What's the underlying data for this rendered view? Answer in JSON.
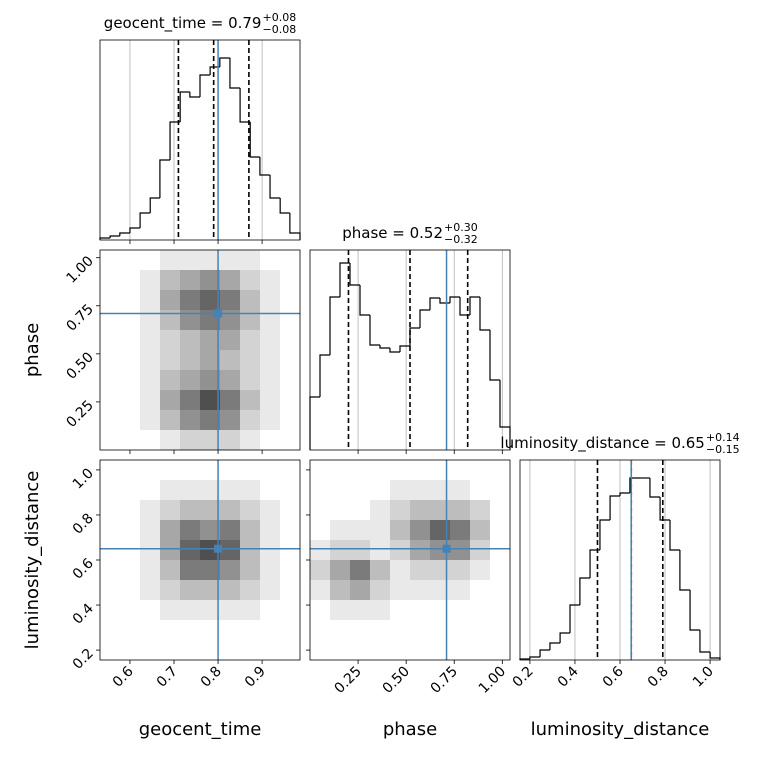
{
  "chart_data": [
    {
      "type": "histogram",
      "title": "geocent_time = 0.79",
      "title_plus": "+0.08",
      "title_minus": "−0.08",
      "bins": [
        0.532,
        0.555,
        0.577,
        0.6,
        0.623,
        0.646,
        0.668,
        0.691,
        0.714,
        0.736,
        0.759,
        0.782,
        0.804,
        0.827,
        0.85,
        0.873,
        0.895,
        0.918,
        0.941,
        0.963,
        0.986
      ],
      "counts": [
        2,
        4,
        7,
        12,
        27,
        42,
        80,
        118,
        148,
        143,
        165,
        173,
        182,
        152,
        118,
        83,
        65,
        42,
        27,
        7
      ],
      "xlim": [
        0.532,
        0.986
      ],
      "ylim": [
        0,
        200
      ],
      "quantiles": [
        0.71,
        0.79,
        0.87
      ],
      "truth": 0.8,
      "truth_color": "#4682b4",
      "grid": true
    },
    {
      "type": "density",
      "xlim": [
        0.532,
        0.986
      ],
      "ylim": [
        0,
        1.04
      ],
      "density": [
        [
          0,
          0,
          0,
          1,
          1,
          1,
          1,
          1,
          0,
          0
        ],
        [
          0,
          0,
          1,
          3,
          4,
          5,
          4,
          2,
          1,
          0
        ],
        [
          0,
          0,
          1,
          4,
          6,
          7,
          6,
          3,
          1,
          0
        ],
        [
          0,
          0,
          1,
          3,
          5,
          6,
          5,
          3,
          1,
          0
        ],
        [
          0,
          0,
          1,
          2,
          3,
          4,
          4,
          2,
          1,
          0
        ],
        [
          0,
          0,
          1,
          2,
          3,
          4,
          3,
          2,
          1,
          0
        ],
        [
          0,
          0,
          1,
          3,
          4,
          5,
          4,
          2,
          1,
          0
        ],
        [
          0,
          0,
          1,
          4,
          6,
          8,
          6,
          3,
          1,
          0
        ],
        [
          0,
          0,
          1,
          3,
          5,
          6,
          5,
          2,
          1,
          0
        ],
        [
          0,
          0,
          0,
          1,
          2,
          2,
          2,
          1,
          0,
          0
        ]
      ],
      "truth_x": 0.8,
      "truth_y": 0.71,
      "truth_color": "#4682b4",
      "ylabel": "phase",
      "yticks": [
        0.25,
        {
          "value": 0.5,
          "label": "0.50"
        },
        0.75,
        {
          "value": 1,
          "label": "1.00"
        }
      ]
    },
    {
      "type": "histogram",
      "title": "phase = 0.52",
      "title_plus": "+0.30",
      "title_minus": "−0.32",
      "bins": [
        0,
        0.052,
        0.104,
        0.156,
        0.208,
        0.26,
        0.312,
        0.364,
        0.416,
        0.468,
        0.52,
        0.572,
        0.624,
        0.676,
        0.728,
        0.78,
        0.832,
        0.884,
        0.936,
        0.988,
        1.04
      ],
      "counts": [
        53,
        95,
        153,
        187,
        165,
        135,
        105,
        102,
        98,
        104,
        122,
        140,
        152,
        147,
        153,
        135,
        153,
        120,
        70,
        23
      ],
      "xlim": [
        0,
        1.04
      ],
      "ylim": [
        0,
        200
      ],
      "quantiles": [
        0.2,
        0.52,
        0.82
      ],
      "truth": 0.71,
      "truth_color": "#4682b4",
      "grid": true
    },
    {
      "type": "density",
      "xlim": [
        0.532,
        0.986
      ],
      "ylim": [
        0.156,
        1.044
      ],
      "density": [
        [
          0,
          0,
          0,
          0,
          0,
          0,
          0,
          0,
          0,
          0
        ],
        [
          0,
          0,
          0,
          1,
          1,
          1,
          1,
          1,
          0,
          0
        ],
        [
          0,
          0,
          1,
          2,
          3,
          3,
          3,
          2,
          1,
          0
        ],
        [
          0,
          0,
          1,
          4,
          6,
          5,
          6,
          3,
          1,
          0
        ],
        [
          0,
          0,
          1,
          4,
          7,
          8,
          7,
          3,
          1,
          0
        ],
        [
          0,
          0,
          1,
          3,
          6,
          6,
          5,
          3,
          1,
          0
        ],
        [
          0,
          0,
          1,
          2,
          3,
          3,
          3,
          2,
          1,
          0
        ],
        [
          0,
          0,
          0,
          1,
          1,
          1,
          1,
          1,
          0,
          0
        ],
        [
          0,
          0,
          0,
          0,
          0,
          0,
          0,
          0,
          0,
          0
        ],
        [
          0,
          0,
          0,
          0,
          0,
          0,
          0,
          0,
          0,
          0
        ]
      ],
      "truth_x": 0.8,
      "truth_y": 0.65,
      "truth_color": "#4682b4",
      "xlabel": "geocent_time",
      "xticks": [
        0.6,
        0.7,
        0.8,
        0.9
      ],
      "ylabel": "luminosity_distance",
      "yticks": [
        0.2,
        0.4,
        0.6,
        0.8,
        {
          "value": 1,
          "label": "1.0"
        }
      ]
    },
    {
      "type": "density",
      "xlim": [
        0,
        1.04
      ],
      "ylim": [
        0.156,
        1.044
      ],
      "density": [
        [
          0,
          0,
          0,
          0,
          0,
          0,
          0,
          0,
          0,
          0
        ],
        [
          0,
          0,
          0,
          0,
          1,
          1,
          1,
          1,
          0,
          0
        ],
        [
          0,
          0,
          0,
          1,
          2,
          3,
          3,
          3,
          2,
          0
        ],
        [
          0,
          1,
          1,
          1,
          3,
          5,
          7,
          6,
          3,
          0
        ],
        [
          1,
          2,
          2,
          1,
          2,
          4,
          5,
          5,
          2,
          0
        ],
        [
          2,
          4,
          6,
          3,
          1,
          2,
          2,
          2,
          1,
          0
        ],
        [
          1,
          3,
          4,
          2,
          1,
          1,
          1,
          1,
          0,
          0
        ],
        [
          0,
          1,
          1,
          1,
          0,
          0,
          0,
          0,
          0,
          0
        ],
        [
          0,
          0,
          0,
          0,
          0,
          0,
          0,
          0,
          0,
          0
        ],
        [
          0,
          0,
          0,
          0,
          0,
          0,
          0,
          0,
          0,
          0
        ]
      ],
      "truth_x": 0.71,
      "truth_y": 0.65,
      "truth_color": "#4682b4",
      "xlabel": "phase",
      "xticks": [
        0.25,
        {
          "value": 0.5,
          "label": "0.50"
        },
        0.75,
        {
          "value": 1,
          "label": "1.00"
        }
      ]
    },
    {
      "type": "histogram",
      "title": "luminosity_distance = 0.65",
      "title_plus": "+0.14",
      "title_minus": "−0.15",
      "bins": [
        0.156,
        0.2,
        0.245,
        0.289,
        0.334,
        0.378,
        0.422,
        0.467,
        0.511,
        0.556,
        0.6,
        0.644,
        0.689,
        0.733,
        0.778,
        0.822,
        0.866,
        0.911,
        0.955,
        1.0,
        1.044
      ],
      "counts": [
        1,
        3,
        10,
        17,
        27,
        55,
        82,
        110,
        140,
        164,
        167,
        182,
        182,
        163,
        140,
        110,
        70,
        30,
        8,
        2
      ],
      "xlim": [
        0.156,
        1.044
      ],
      "ylim": [
        0,
        200
      ],
      "quantiles": [
        0.5,
        0.65,
        0.79
      ],
      "truth": 0.65,
      "truth_color": "#4682b4",
      "grid": true,
      "xlabel": "luminosity_distance",
      "xticks": [
        0.2,
        0.4,
        0.6,
        0.8,
        {
          "value": 1,
          "label": "1.0"
        }
      ]
    }
  ]
}
